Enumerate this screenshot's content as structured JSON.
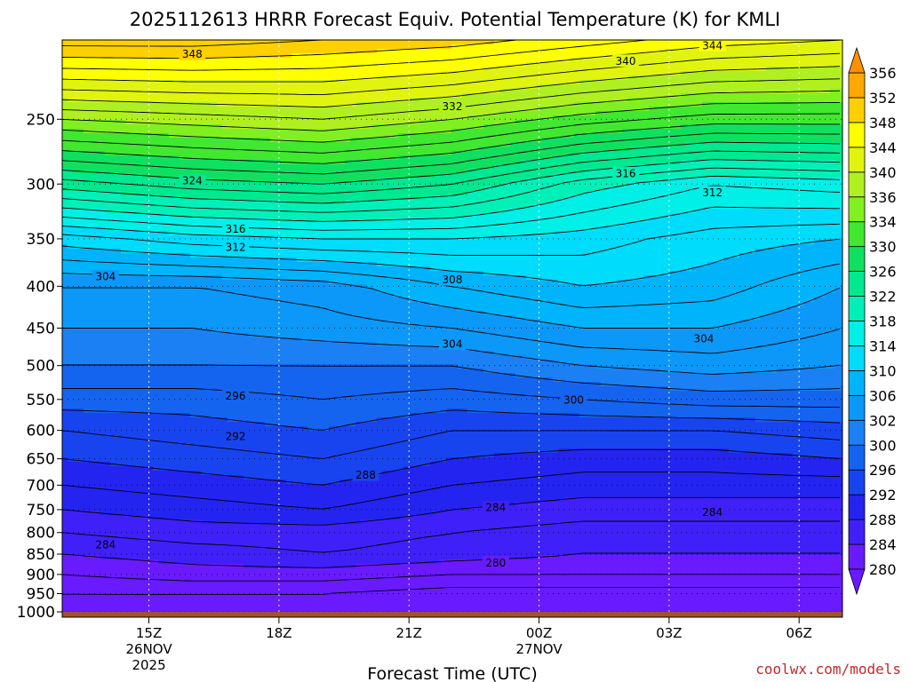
{
  "chart_data": {
    "type": "heatmap",
    "subtype": "time-height contour cross section",
    "title": "2025112613 HRRR Forecast Equiv. Potential Temperature (K) for KMLI",
    "xlabel": "Forecast Time (UTC)",
    "ylabel": "",
    "credit": "coolwx.com/models",
    "y_axis": {
      "type": "pressure (log)",
      "units": "hPa",
      "range": [
        1015,
        200
      ],
      "reversed": true
    },
    "y_ticks": [
      250,
      300,
      350,
      400,
      450,
      500,
      550,
      600,
      650,
      700,
      750,
      800,
      850,
      900,
      950,
      1000
    ],
    "y_tick_labels": [
      "250",
      "300",
      "350",
      "400",
      "450",
      "500",
      "550",
      "600",
      "650",
      "700",
      "750",
      "800",
      "850",
      "900",
      "950",
      "1000"
    ],
    "x_axis": {
      "units": "hours since 13Z 26NOV 2025",
      "range": [
        0,
        18
      ]
    },
    "x_ticks": [
      {
        "hour": 2,
        "label": "15Z",
        "date": "26NOV",
        "year": "2025"
      },
      {
        "hour": 5,
        "label": "18Z"
      },
      {
        "hour": 8,
        "label": "21Z"
      },
      {
        "hour": 11,
        "label": "00Z",
        "date": "27NOV"
      },
      {
        "hour": 14,
        "label": "03Z"
      },
      {
        "hour": 17,
        "label": "06Z"
      }
    ],
    "colorbar": {
      "levels": [
        280,
        284,
        288,
        292,
        296,
        300,
        302,
        306,
        310,
        314,
        318,
        322,
        326,
        330,
        334,
        336,
        340,
        344,
        348,
        352,
        356
      ],
      "labels": [
        "280",
        "284",
        "288",
        "292",
        "296",
        "300",
        "302",
        "306",
        "310",
        "314",
        "318",
        "322",
        "326",
        "330",
        "334",
        "336",
        "340",
        "344",
        "348",
        "352",
        "356"
      ],
      "colors": [
        "#6a1aff",
        "#4020f8",
        "#2424f0",
        "#1844f0",
        "#1464f0",
        "#1a80f4",
        "#0c98f8",
        "#00b4fc",
        "#00dcfc",
        "#00f0e8",
        "#00f0b8",
        "#00e890",
        "#10e060",
        "#40e830",
        "#80f020",
        "#b0f020",
        "#e0f410",
        "#ffff00",
        "#ffd000",
        "#ffa800",
        "#ff9000"
      ],
      "extend": "both"
    },
    "contour_interval": 2,
    "surface_color": "#a0522d",
    "profiles": {
      "hours": [
        0,
        3,
        6,
        9,
        12,
        15,
        18
      ],
      "pressures": [
        1015,
        950,
        900,
        850,
        800,
        750,
        700,
        650,
        600,
        550,
        500,
        450,
        400,
        350,
        300,
        250,
        200
      ],
      "theta_e": [
        [
          279,
          280,
          282,
          284,
          286,
          288,
          290,
          292,
          294,
          297,
          300,
          302,
          304,
          311,
          323,
          336,
          351
        ],
        [
          279,
          280,
          283,
          285,
          287,
          289,
          291,
          293,
          295,
          297,
          300,
          302,
          304,
          313,
          325,
          337,
          351
        ],
        [
          279,
          280,
          283,
          286,
          287,
          290,
          292,
          294,
          296,
          298,
          300,
          303,
          305,
          314,
          326,
          338,
          350
        ],
        [
          278,
          279,
          282,
          285,
          286,
          288,
          290,
          292,
          294,
          297,
          300,
          304,
          308,
          314,
          324,
          336,
          349
        ],
        [
          278,
          279,
          282,
          284,
          285,
          287,
          289,
          291,
          294,
          298,
          302,
          306,
          310,
          313,
          319,
          333,
          347
        ],
        [
          278,
          279,
          282,
          284,
          285,
          287,
          289,
          291,
          294,
          299,
          303,
          306,
          309,
          311,
          316,
          331,
          345
        ],
        [
          278,
          279,
          282,
          284,
          285,
          287,
          289,
          292,
          295,
          299,
          302,
          304,
          306,
          310,
          317,
          331,
          344
        ]
      ]
    },
    "contour_labels": [
      {
        "value": "348",
        "hour": 3.0,
        "p": 208
      },
      {
        "value": "340",
        "hour": 13.0,
        "p": 212
      },
      {
        "value": "344",
        "hour": 15.0,
        "p": 203
      },
      {
        "value": "332",
        "hour": 9.0,
        "p": 241
      },
      {
        "value": "324",
        "hour": 3.0,
        "p": 297
      },
      {
        "value": "316",
        "hour": 13.0,
        "p": 291
      },
      {
        "value": "312",
        "hour": 15.0,
        "p": 307
      },
      {
        "value": "316",
        "hour": 4.0,
        "p": 340
      },
      {
        "value": "312",
        "hour": 4.0,
        "p": 358
      },
      {
        "value": "304",
        "hour": 1.0,
        "p": 389
      },
      {
        "value": "308",
        "hour": 9.0,
        "p": 392
      },
      {
        "value": "304",
        "hour": 9.0,
        "p": 470
      },
      {
        "value": "304",
        "hour": 14.8,
        "p": 463
      },
      {
        "value": "300",
        "hour": 11.8,
        "p": 550
      },
      {
        "value": "296",
        "hour": 4.0,
        "p": 544
      },
      {
        "value": "292",
        "hour": 4.0,
        "p": 610
      },
      {
        "value": "288",
        "hour": 7.0,
        "p": 680
      },
      {
        "value": "284",
        "hour": 10.0,
        "p": 745
      },
      {
        "value": "284",
        "hour": 15.0,
        "p": 755
      },
      {
        "value": "284",
        "hour": 1.0,
        "p": 827
      },
      {
        "value": "280",
        "hour": 10.0,
        "p": 870
      }
    ]
  }
}
